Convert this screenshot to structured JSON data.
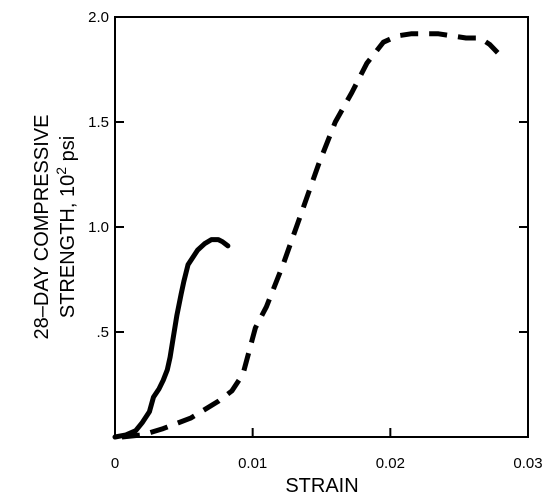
{
  "chart_data": {
    "type": "line",
    "title": "",
    "xlabel": "STRAIN",
    "ylabel_line1": "28–DAY COMPRESSIVE",
    "ylabel_line2_prefix": "STRENGTH, 10",
    "ylabel_line2_sup": "2",
    "ylabel_line2_suffix": " psi",
    "xlim": [
      0,
      0.03
    ],
    "ylim": [
      0,
      2.0
    ],
    "x_ticks": [
      {
        "value": 0,
        "label": "0"
      },
      {
        "value": 0.01,
        "label": "0.01"
      },
      {
        "value": 0.02,
        "label": "0.02"
      },
      {
        "value": 0.03,
        "label": "0.03"
      }
    ],
    "y_ticks": [
      {
        "value": 0.5,
        "label": ".5"
      },
      {
        "value": 1.0,
        "label": "1.0"
      },
      {
        "value": 1.5,
        "label": "1.5"
      },
      {
        "value": 2.0,
        "label": "2.0"
      }
    ],
    "grid": false,
    "legend": "none",
    "series": [
      {
        "style": "solid",
        "color": "#000000",
        "x": [
          0,
          0.0008,
          0.0015,
          0.002,
          0.0025,
          0.0028,
          0.0032,
          0.0035,
          0.0038,
          0.004,
          0.0042,
          0.0045,
          0.0048,
          0.005,
          0.0053,
          0.0057,
          0.006,
          0.0065,
          0.007,
          0.0075,
          0.0078,
          0.0082
        ],
        "y": [
          0,
          0.01,
          0.03,
          0.07,
          0.12,
          0.19,
          0.23,
          0.27,
          0.32,
          0.38,
          0.46,
          0.58,
          0.68,
          0.74,
          0.82,
          0.86,
          0.89,
          0.92,
          0.94,
          0.94,
          0.93,
          0.91
        ]
      },
      {
        "style": "dashed",
        "color": "#000000",
        "x": [
          0.0005,
          0.002,
          0.0035,
          0.0055,
          0.0075,
          0.0085,
          0.0093,
          0.0102,
          0.011,
          0.0122,
          0.0135,
          0.0148,
          0.016,
          0.0172,
          0.0183,
          0.0195,
          0.0205,
          0.0215,
          0.0225,
          0.0235,
          0.0245,
          0.0255,
          0.0265,
          0.0272,
          0.0278
        ],
        "y": [
          0,
          0.01,
          0.04,
          0.09,
          0.17,
          0.22,
          0.3,
          0.52,
          0.62,
          0.82,
          1.06,
          1.3,
          1.5,
          1.64,
          1.78,
          1.88,
          1.91,
          1.92,
          1.92,
          1.92,
          1.91,
          1.9,
          1.9,
          1.87,
          1.83
        ]
      }
    ]
  }
}
